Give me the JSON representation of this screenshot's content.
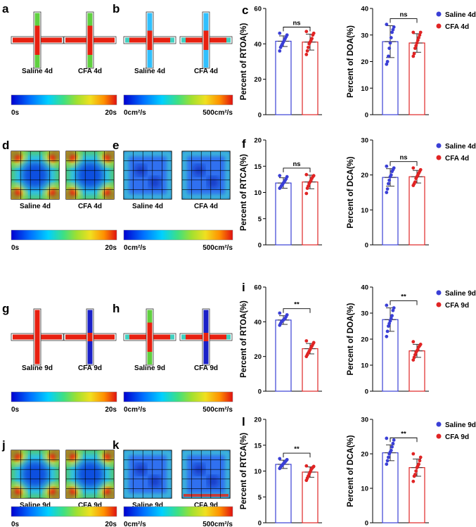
{
  "figure": {
    "colors": {
      "saline": "#3a3fd6",
      "cfa": "#e02424",
      "heat": [
        "#0000d0",
        "#0066ff",
        "#00c8ff",
        "#30e0a0",
        "#80e040",
        "#e8e020",
        "#ff9000",
        "#e82010"
      ]
    },
    "panels": [
      {
        "letter": "a",
        "type": "cross-heat",
        "labels": [
          "Saline 4d",
          "CFA 4d"
        ],
        "scale": [
          "0s",
          "20s"
        ]
      },
      {
        "letter": "b",
        "type": "cross-speed",
        "labels": [
          "Saline 4d",
          "CFA 4d"
        ],
        "scale": [
          "0cm²/s",
          "500cm²/s"
        ]
      },
      {
        "letter": "d",
        "type": "box-heat",
        "labels": [
          "Saline 4d",
          "CFA 4d"
        ],
        "scale": [
          "0s",
          "20s"
        ]
      },
      {
        "letter": "e",
        "type": "box-speed",
        "labels": [
          "Saline 4d",
          "CFA 4d"
        ],
        "scale": [
          "0cm²/s",
          "500cm²/s"
        ]
      },
      {
        "letter": "g",
        "type": "cross-heat",
        "labels": [
          "Saline 9d",
          "CFA 9d"
        ],
        "scale": [
          "0s",
          "20s"
        ]
      },
      {
        "letter": "h",
        "type": "cross-speed",
        "labels": [
          "Saline 9d",
          "CFA 9d"
        ],
        "scale": [
          "0cm²/s",
          "500cm²/s"
        ]
      },
      {
        "letter": "j",
        "type": "box-heat",
        "labels": [
          "Saline 9d",
          "CFA 9d"
        ],
        "scale": [
          "0s",
          "20s"
        ]
      },
      {
        "letter": "k",
        "type": "box-speed",
        "labels": [
          "Saline 9d",
          "CFA 9d"
        ],
        "scale": [
          "0cm²/s",
          "500cm²/s"
        ]
      }
    ]
  },
  "chart_data": [
    {
      "panel": "c",
      "type": "bar",
      "ylabel": "Percent of RTOA(%)",
      "ylim": [
        0,
        60
      ],
      "yticks": [
        0,
        20,
        40,
        60
      ],
      "significance": "ns",
      "categories": [
        "Saline 4d",
        "CFA 4d"
      ],
      "values": [
        41.5,
        41.0
      ],
      "errors": [
        3,
        4.5
      ],
      "points": [
        [
          36,
          38,
          39,
          40,
          41,
          42,
          43,
          44,
          45,
          46
        ],
        [
          34,
          36,
          38,
          40,
          41,
          42,
          43,
          45,
          46,
          47
        ]
      ]
    },
    {
      "panel": "c",
      "type": "bar",
      "ylabel": "Percent of DOA(%)",
      "ylim": [
        0,
        40
      ],
      "yticks": [
        0,
        10,
        20,
        30,
        40
      ],
      "significance": "ns",
      "categories": [
        "Saline 4d",
        "CFA 4d"
      ],
      "values": [
        27.5,
        27.0
      ],
      "errors": [
        6,
        3.5
      ],
      "points": [
        [
          19,
          20,
          22,
          25,
          27,
          29,
          31,
          32,
          33,
          34
        ],
        [
          22,
          23,
          25,
          26,
          27,
          28,
          29,
          30,
          31,
          31
        ]
      ],
      "legend": [
        "Saline 4d",
        "CFA 4d"
      ]
    },
    {
      "panel": "f",
      "type": "bar",
      "ylabel": "Percent of RTCA(%)",
      "ylim": [
        0,
        20
      ],
      "yticks": [
        0,
        5,
        10,
        15,
        20
      ],
      "significance": "ns",
      "categories": [
        "Saline 4d",
        "CFA 4d"
      ],
      "values": [
        11.8,
        12.0
      ],
      "errors": [
        1.0,
        1.3
      ],
      "points": [
        [
          10.8,
          11.0,
          11.3,
          11.5,
          11.8,
          12.0,
          12.3,
          12.6,
          13.0,
          13.2
        ],
        [
          9.8,
          10.8,
          11.2,
          11.7,
          12.0,
          12.3,
          12.7,
          13.0,
          13.2,
          13.4
        ]
      ]
    },
    {
      "panel": "f",
      "type": "bar",
      "ylabel": "Percent of DCA(%)",
      "ylim": [
        0,
        30
      ],
      "yticks": [
        0,
        10,
        20,
        30
      ],
      "significance": "ns",
      "categories": [
        "Saline 4d",
        "CFA 4d"
      ],
      "values": [
        19.3,
        19.5
      ],
      "errors": [
        2.5,
        1.8
      ],
      "points": [
        [
          15,
          16,
          17.5,
          18.5,
          19.5,
          20,
          21,
          21.5,
          22,
          22.5
        ],
        [
          17,
          17.5,
          18,
          19,
          19.5,
          20,
          20.5,
          21,
          21.5,
          22
        ]
      ],
      "legend": [
        "Saline 4d",
        "CFA 4d"
      ]
    },
    {
      "panel": "i",
      "type": "bar",
      "ylabel": "Percent of RTOA(%)",
      "ylim": [
        0,
        60
      ],
      "yticks": [
        0,
        20,
        40,
        60
      ],
      "significance": "**",
      "categories": [
        "Saline 9d",
        "CFA 9d"
      ],
      "values": [
        41.0,
        24.5
      ],
      "errors": [
        2.5,
        3.0
      ],
      "points": [
        [
          38,
          39,
          40,
          40.5,
          41,
          41.5,
          42,
          43,
          44,
          45
        ],
        [
          20,
          21,
          22,
          23,
          24,
          25,
          26,
          27,
          28,
          29
        ]
      ]
    },
    {
      "panel": "i",
      "type": "bar",
      "ylabel": "Percent of DOA(%)",
      "ylim": [
        0,
        40
      ],
      "yticks": [
        0,
        10,
        20,
        30,
        40
      ],
      "significance": "**",
      "categories": [
        "Saline 9d",
        "CFA 9d"
      ],
      "values": [
        27.5,
        15.5
      ],
      "errors": [
        4.5,
        2.5
      ],
      "points": [
        [
          21,
          23,
          25,
          26,
          27,
          28,
          29,
          31,
          32,
          33
        ],
        [
          12,
          13,
          14,
          15,
          15.5,
          16,
          17,
          17.5,
          18,
          19
        ]
      ],
      "legend": [
        "Saline 9d",
        "CFA 9d"
      ]
    },
    {
      "panel": "l",
      "type": "bar",
      "ylabel": "Percent of RTCA(%)",
      "ylim": [
        0,
        20
      ],
      "yticks": [
        0,
        5,
        10,
        15,
        20
      ],
      "significance": "**",
      "categories": [
        "Saline 9d",
        "CFA 9d"
      ],
      "values": [
        11.3,
        9.8
      ],
      "errors": [
        0.8,
        1.0
      ],
      "points": [
        [
          10.5,
          10.8,
          11.0,
          11.2,
          11.4,
          11.6,
          11.8,
          12.0,
          12.2,
          12.4
        ],
        [
          8.2,
          8.6,
          9.0,
          9.4,
          9.8,
          10.2,
          10.5,
          10.7,
          10.9,
          11.0
        ]
      ]
    },
    {
      "panel": "l",
      "type": "bar",
      "ylabel": "Percent of DCA(%)",
      "ylim": [
        0,
        30
      ],
      "yticks": [
        0,
        10,
        20,
        30
      ],
      "significance": "**",
      "categories": [
        "Saline 9d",
        "CFA 9d"
      ],
      "values": [
        20.3,
        16.0
      ],
      "errors": [
        2.3,
        2.5
      ],
      "points": [
        [
          17,
          18,
          19,
          20,
          20.5,
          21,
          22,
          23,
          24,
          24.5
        ],
        [
          12,
          13.5,
          14,
          15,
          16,
          16.5,
          17,
          18,
          19,
          20
        ]
      ],
      "legend": [
        "Saline 9d",
        "CFA 9d"
      ]
    }
  ]
}
